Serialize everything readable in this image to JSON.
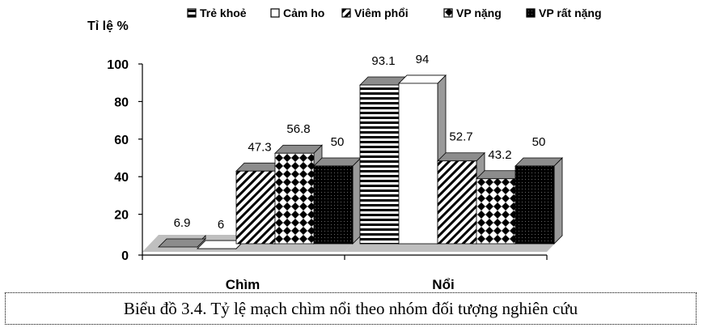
{
  "chart_data": {
    "type": "bar",
    "ylabel": "Tỉ lệ %",
    "categories": [
      "Chìm",
      "Nổi"
    ],
    "ylim": [
      0,
      100
    ],
    "yticks": [
      0,
      20,
      40,
      60,
      80,
      100
    ],
    "legend_position": "top",
    "series": [
      {
        "name": "Trẻ khoẻ",
        "values": [
          6.9,
          93.1
        ],
        "pattern": "hstripes",
        "color": "#000000"
      },
      {
        "name": "Cảm ho",
        "values": [
          6,
          94
        ],
        "pattern": "white",
        "color": "#000000"
      },
      {
        "name": "Viêm phổi",
        "values": [
          47.3,
          52.7
        ],
        "pattern": "diagonal",
        "color": "#000000"
      },
      {
        "name": "VP nặng",
        "values": [
          56.8,
          43.2
        ],
        "pattern": "diamonds",
        "color": "#000000"
      },
      {
        "name": "VP rất nặng",
        "values": [
          50,
          50
        ],
        "pattern": "dense",
        "color": "#000000"
      }
    ],
    "data_labels": [
      [
        "6.9",
        "6",
        "47.3",
        "56.8",
        "50"
      ],
      [
        "93.1",
        "94",
        "52.7",
        "43.2",
        "50"
      ]
    ]
  },
  "caption": "Biểu đồ 3.4. Tỷ lệ mạch chìm nổi theo nhóm đối tượng nghiên cứu"
}
